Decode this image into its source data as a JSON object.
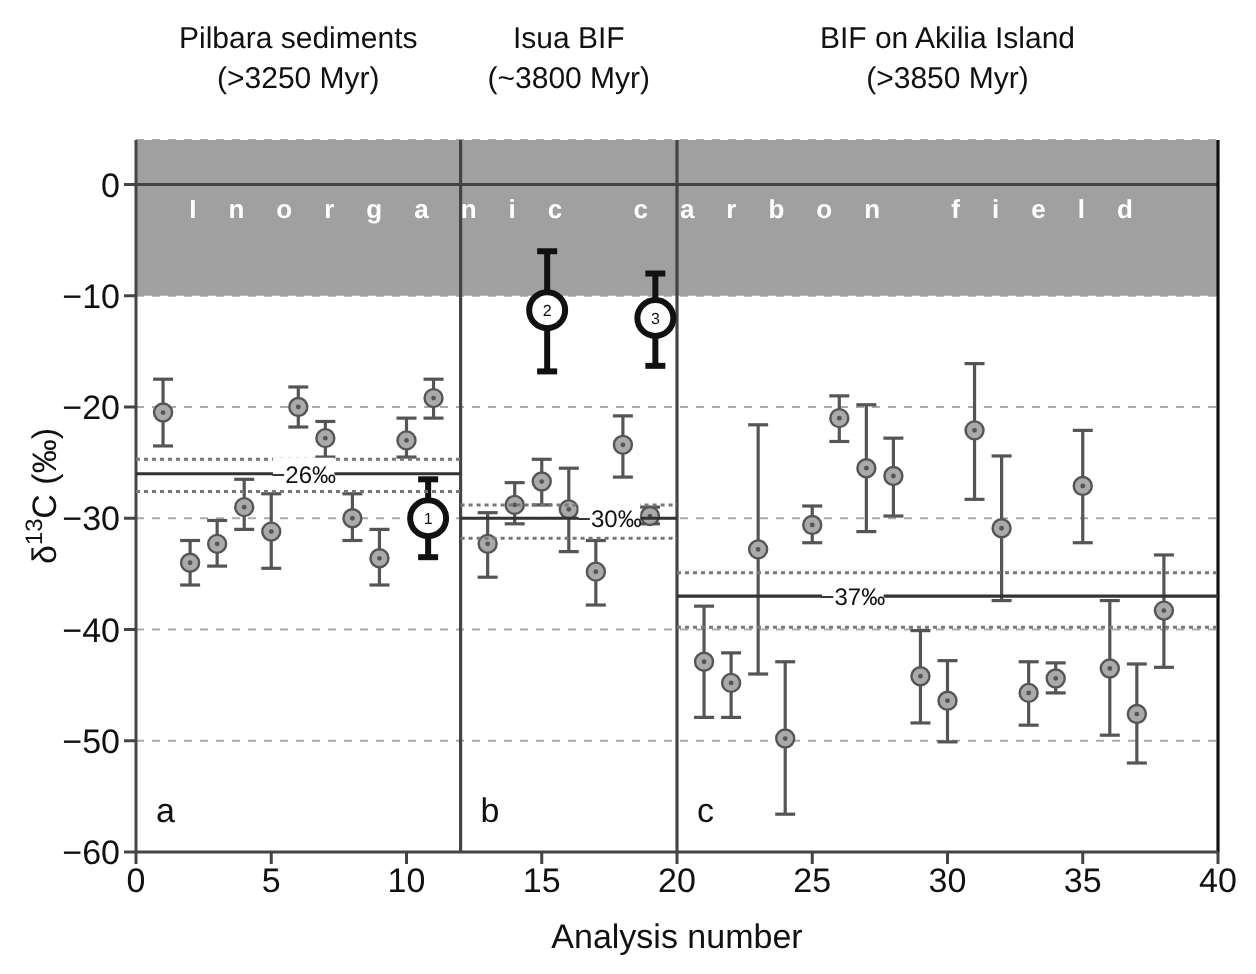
{
  "chart_data": {
    "type": "scatter",
    "xlabel": "Analysis number",
    "ylabel": "δ$^{13}$C (‰)",
    "xlim": [
      0,
      40
    ],
    "xticks": [
      0,
      5,
      10,
      15,
      20,
      25,
      30,
      35,
      40
    ],
    "ylim": [
      -60,
      4
    ],
    "yticks": [
      0,
      -10,
      -20,
      -30,
      -40,
      -50,
      -60
    ],
    "grid": "y",
    "series": [
      {
        "marker": "circle",
        "color": "#555555",
        "x": [
          1,
          2,
          3,
          4,
          5,
          6,
          7,
          8,
          9,
          10,
          11,
          13,
          14,
          15,
          16,
          17,
          18,
          19,
          21,
          22,
          23,
          24,
          25,
          26,
          27,
          28,
          29,
          30,
          31,
          32,
          33,
          34,
          35,
          36,
          37,
          38
        ],
        "values": [
          -20.5,
          -34,
          -32.3,
          -29,
          -31.2,
          -20,
          -22.8,
          -30,
          -33.6,
          -23,
          -19.2,
          -32.3,
          -28.8,
          -26.7,
          -29.2,
          -34.8,
          -23.4,
          -29.8,
          -42.9,
          -44.8,
          -32.8,
          -49.8,
          -30.6,
          -21,
          -25.5,
          -26.2,
          -44.2,
          -46.4,
          -22.1,
          -30.9,
          -45.7,
          -44.4,
          -27.1,
          -43.5,
          -47.6,
          -38.3
        ],
        "errors": [
          [
            -23.5,
            -17.5
          ],
          [
            -36,
            -32
          ],
          [
            -34.3,
            -30.2
          ],
          [
            -31,
            -26.5
          ],
          [
            -34.5,
            -27.8
          ],
          [
            -21.8,
            -18.2
          ],
          [
            -24.5,
            -21.3
          ],
          [
            -32,
            -27.8
          ],
          [
            -36,
            -31
          ],
          [
            -24.5,
            -21
          ],
          [
            -21,
            -17.5
          ],
          [
            -35.3,
            -29.5
          ],
          [
            -30.5,
            -26.8
          ],
          [
            -28.8,
            -24.7
          ],
          [
            -33,
            -25.5
          ],
          [
            -37.8,
            -32
          ],
          [
            -26.3,
            -20.8
          ],
          [
            -30.5,
            -29
          ],
          [
            -47.9,
            -37.9
          ],
          [
            -47.9,
            -42.1
          ],
          [
            -44,
            -21.6
          ],
          [
            -56.6,
            -42.9
          ],
          [
            -32.2,
            -28.9
          ],
          [
            -23.1,
            -19
          ],
          [
            -31.2,
            -19.8
          ],
          [
            -29.8,
            -22.8
          ],
          [
            -48.4,
            -40.1
          ],
          [
            -50.1,
            -42.8
          ],
          [
            -28.3,
            -16.1
          ],
          [
            -37.4,
            -24.4
          ],
          [
            -48.6,
            -42.9
          ],
          [
            -45.7,
            -43
          ],
          [
            -32.2,
            -22.1
          ],
          [
            -49.5,
            -37.4
          ],
          [
            -52,
            -43.1
          ],
          [
            -43.4,
            -33.3
          ]
        ]
      },
      {
        "marker": "circle",
        "color": "#111111",
        "x": [
          10.8,
          15.2,
          19.2
        ],
        "values": [
          -30,
          -11.3,
          -12
        ],
        "errors": [
          [
            -33.5,
            -26.5
          ],
          [
            -16.8,
            -6
          ],
          [
            -16.3,
            -8
          ]
        ]
      },
      {
        "type": "line",
        "color": "#333333",
        "line_style": "solid",
        "x": [
          0,
          12
        ],
        "values": [
          -26,
          -26
        ]
      },
      {
        "type": "line",
        "color": "#777777",
        "line_style": "dotted",
        "x": [
          0,
          12
        ],
        "values": [
          -24.7,
          -24.7
        ]
      },
      {
        "type": "line",
        "color": "#777777",
        "line_style": "dotted",
        "x": [
          0,
          12
        ],
        "values": [
          -27.6,
          -27.6
        ]
      },
      {
        "type": "line",
        "color": "#333333",
        "line_style": "solid",
        "x": [
          12,
          20
        ],
        "values": [
          -30,
          -30
        ]
      },
      {
        "type": "line",
        "color": "#777777",
        "line_style": "dotted",
        "x": [
          12,
          20
        ],
        "values": [
          -28.8,
          -28.8
        ]
      },
      {
        "type": "line",
        "color": "#777777",
        "line_style": "dotted",
        "x": [
          12,
          20
        ],
        "values": [
          -31.8,
          -31.8
        ]
      },
      {
        "type": "line",
        "color": "#333333",
        "line_style": "solid",
        "x": [
          20,
          40
        ],
        "values": [
          -37,
          -37
        ]
      },
      {
        "type": "line",
        "color": "#777777",
        "line_style": "dotted",
        "x": [
          20,
          40
        ],
        "values": [
          -34.9,
          -34.9
        ]
      },
      {
        "type": "line",
        "color": "#777777",
        "line_style": "dotted",
        "x": [
          20,
          40
        ],
        "values": [
          -39.8,
          -39.8
        ]
      }
    ],
    "bands": [
      {
        "axis": "y",
        "from": -10,
        "to": 4,
        "label": "Inorganic carbon field",
        "color": "#a0a0a0"
      }
    ],
    "ref_lines": [
      {
        "axis": "x",
        "value": 12,
        "color": "#444444"
      },
      {
        "axis": "x",
        "value": 20,
        "color": "#444444"
      },
      {
        "axis": "x",
        "value": 40,
        "color": "#111111"
      }
    ],
    "annotations": [
      "Pilbara sediments\n(>3250 Myr)",
      "Isua BIF\n(~3800 Myr)",
      "BIF on Akilia Island\n(>3850 Myr)",
      {
        "text": "1",
        "x": 10.8,
        "y": -30
      },
      {
        "text": "2",
        "x": 15.2,
        "y": -11.3
      },
      {
        "text": "3",
        "x": 19.2,
        "y": -12
      },
      {
        "text": "−26‰",
        "x": 6.2,
        "y": -26
      },
      {
        "text": "−30‰",
        "x": 17.5,
        "y": -30
      },
      {
        "text": "−37‰",
        "x": 26.5,
        "y": -37
      },
      "a",
      "b",
      "c"
    ]
  }
}
